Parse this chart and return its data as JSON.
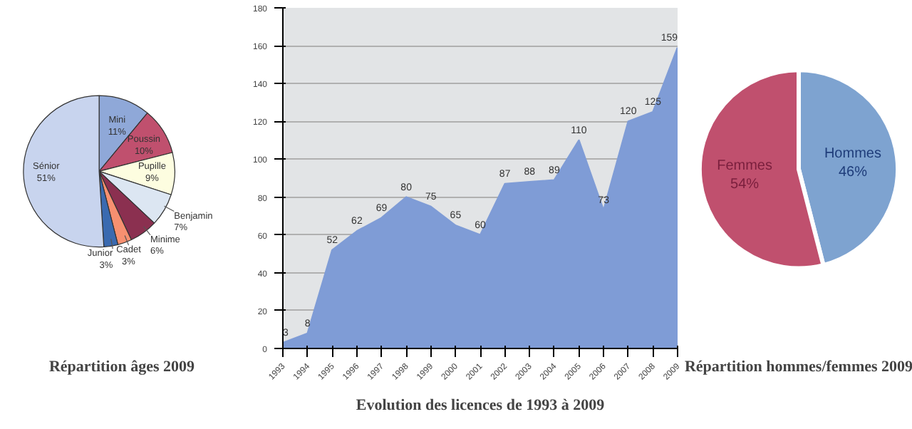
{
  "chart_data": [
    {
      "type": "pie",
      "title": "Répartition âges 2009",
      "categories": [
        "Mini",
        "Poussin",
        "Pupille",
        "Benjamin",
        "Minime",
        "Cadet",
        "Junior",
        "Sénior"
      ],
      "values": [
        11,
        10,
        9,
        7,
        6,
        3,
        3,
        51
      ],
      "colors": [
        "#8fa8d8",
        "#c0506e",
        "#fdfde0",
        "#dce6f2",
        "#8b3050",
        "#f79070",
        "#3a6ab0",
        "#c8d4ee"
      ],
      "value_labels": [
        "11%",
        "10%",
        "9%",
        "7%",
        "6%",
        "3%",
        "3%",
        "51%"
      ]
    },
    {
      "type": "area",
      "title": "Evolution des licences de 1993 à 2009",
      "x": [
        1993,
        1994,
        1995,
        1996,
        1997,
        1998,
        1999,
        2000,
        2001,
        2002,
        2003,
        2004,
        2005,
        2006,
        2007,
        2008,
        2009
      ],
      "series": [
        {
          "color": "#7f9cd6",
          "values": [
            3,
            8,
            52,
            62,
            69,
            80,
            75,
            65,
            60,
            87,
            88,
            89,
            110,
            73,
            120,
            125,
            159
          ]
        }
      ],
      "xlim": [
        1993,
        2009
      ],
      "xticks": [
        1993,
        1994,
        1995,
        1996,
        1997,
        1998,
        1999,
        2000,
        2001,
        2002,
        2003,
        2004,
        2005,
        2006,
        2007,
        2008,
        2009
      ],
      "ylim": [
        0,
        180
      ],
      "yticks": [
        0,
        20,
        40,
        60,
        80,
        100,
        120,
        140,
        160,
        180
      ],
      "grid": "y",
      "data_labels": true
    },
    {
      "type": "pie",
      "title": "Répartition hommes/femmes 2009",
      "categories": [
        "Hommes",
        "Femmes"
      ],
      "values": [
        46,
        54
      ],
      "colors": [
        "#7ea3d0",
        "#c0506e"
      ],
      "value_labels": [
        "46%",
        "54%"
      ]
    }
  ]
}
